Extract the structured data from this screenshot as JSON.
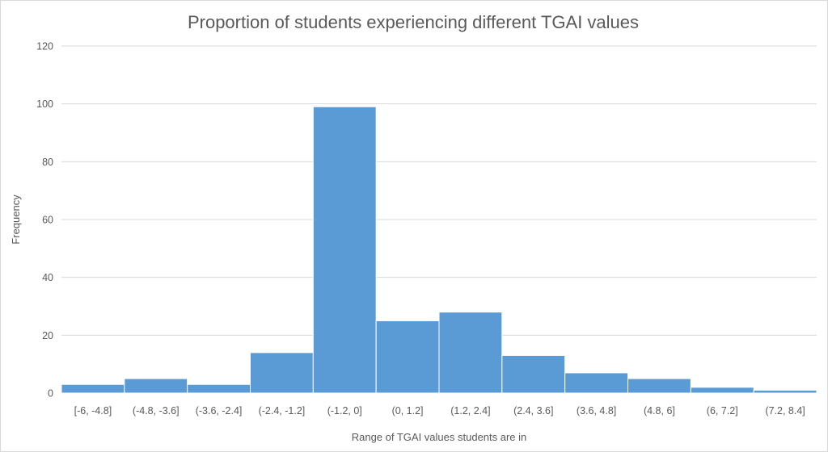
{
  "chart_data": {
    "type": "bar",
    "title": "Proportion of students experiencing different TGAI values",
    "xlabel": "Range of TGAI values students are in",
    "ylabel": "Frequency",
    "categories": [
      "[-6, -4.8]",
      "(-4.8, -3.6]",
      "(-3.6, -2.4]",
      "(-2.4, -1.2]",
      "(-1.2, 0]",
      "(0, 1.2]",
      "(1.2, 2.4]",
      "(2.4, 3.6]",
      "(3.6, 4.8]",
      "(4.8, 6]",
      "(6, 7.2]",
      "(7.2, 8.4]"
    ],
    "values": [
      3,
      5,
      3,
      14,
      99,
      25,
      28,
      13,
      7,
      5,
      2,
      1
    ],
    "ylim": [
      0,
      120
    ],
    "yticks": [
      0,
      20,
      40,
      60,
      80,
      100,
      120
    ],
    "grid": true,
    "legend": "none",
    "bar_color": "#5b9bd5"
  }
}
